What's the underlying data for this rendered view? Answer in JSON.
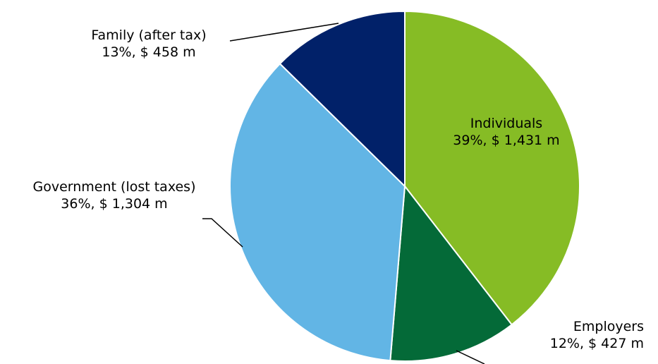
{
  "chart_data": {
    "type": "pie",
    "unit": "$ m",
    "start_angle_deg": 0,
    "direction": "clockwise",
    "slices": [
      {
        "name": "Individuals",
        "percent_label": "39%, $ 1,431 m",
        "value": 1431,
        "color": "#86BC25"
      },
      {
        "name": "Employers",
        "percent_label": "12%, $ 427 m",
        "value": 427,
        "color": "#046A38"
      },
      {
        "name": "Government (lost taxes)",
        "percent_label": "36%, $ 1,304 m",
        "value": 1304,
        "color": "#62B5E5"
      },
      {
        "name": "Family (after tax)",
        "percent_label": "13%, $ 458 m",
        "value": 458,
        "color": "#012169"
      }
    ],
    "legend": "none",
    "grid": false
  }
}
